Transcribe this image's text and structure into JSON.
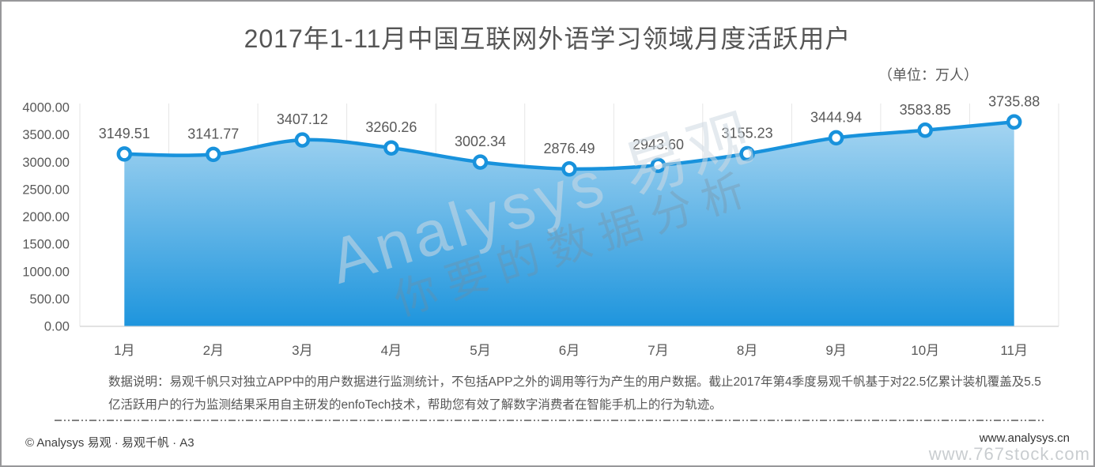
{
  "header": {
    "title": "2017年1-11月中国互联网外语学习领域月度活跃用户",
    "unit_label": "（单位：万人）"
  },
  "watermark": {
    "line1": "Analysys 易观",
    "line2": "你要的数据分析"
  },
  "footnote": {
    "lines": [
      "数据说明：易观千帆只对独立APP中的用户数据进行监测统计，不包括APP之外的调用等行为产生的用户数据。截止2017年第4季度易观千帆基于对22.5亿累计装机覆盖及5.5",
      "亿活跃用户的行为监测结果采用自主研发的enfoTech技术，帮助您有效了解数字消费者在智能手机上的行为轨迹。"
    ]
  },
  "footer": {
    "copyright": "© Analysys 易观 · 易观千帆 · A3",
    "site_link": "www.analysys.cn",
    "stock_watermark": "www.767stock.com"
  },
  "chart_data": {
    "type": "area",
    "title": "2017年1-11月中国互联网外语学习领域月度活跃用户",
    "unit": "万人",
    "categories": [
      "1月",
      "2月",
      "3月",
      "4月",
      "5月",
      "6月",
      "7月",
      "8月",
      "9月",
      "10月",
      "11月"
    ],
    "values": [
      3149.51,
      3141.77,
      3407.12,
      3260.26,
      3002.34,
      2876.49,
      2943.6,
      3155.23,
      3444.94,
      3583.85,
      3735.88
    ],
    "ylim": [
      0,
      4000
    ],
    "ytick_step": 500,
    "ytick_format": "two-decimals",
    "data_labels": "on",
    "legend": "none",
    "grid": "vertical-only",
    "colors": {
      "line": "#1892DC",
      "area_top": "#A6D5F1",
      "area_bottom": "#1E95DD",
      "marker_fill": "#FFFFFF",
      "grid_line": "#E6E6E6",
      "axis_line": "#D9D9D9",
      "text": "#595959"
    }
  }
}
